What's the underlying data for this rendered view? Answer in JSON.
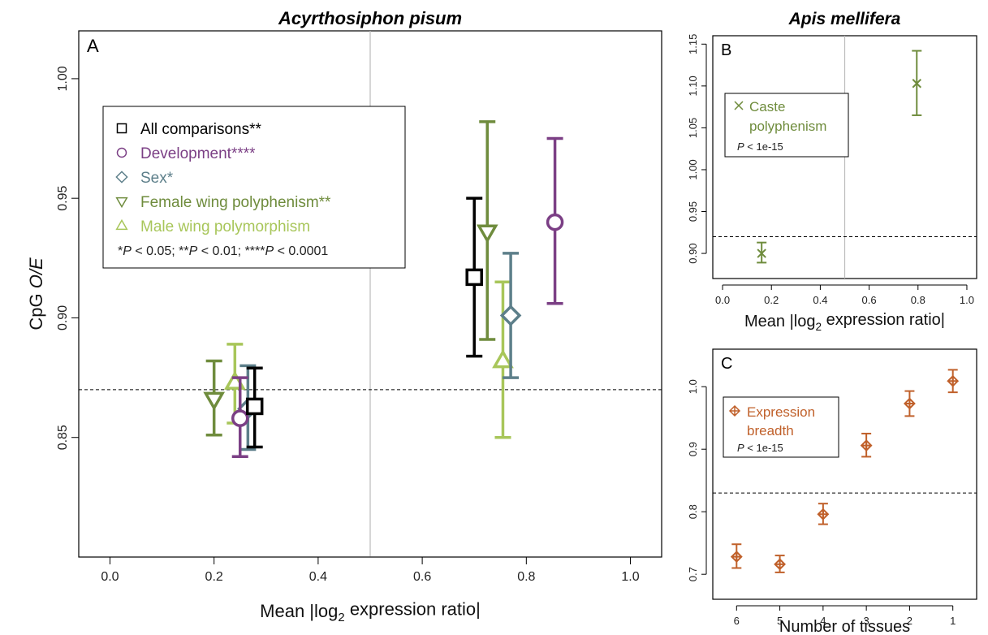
{
  "colors": {
    "all": "#000000",
    "development": "#7b3f85",
    "sex": "#5d7f8a",
    "female_wing": "#6f8c3d",
    "male_wing": "#a8c65a",
    "caste": "#6f8c3d",
    "expression": "#c0602a",
    "refline": "#000000",
    "vline": "#bbbbbb"
  },
  "chart_data": [
    {
      "id": "A",
      "type": "scatter",
      "title": "Acyrthosiphon pisum",
      "panel_label": "A",
      "xlabel": "Mean |log₂ expression ratio|",
      "ylabel": "CpG O/E",
      "xlim": [
        -0.06,
        1.06
      ],
      "ylim": [
        0.8,
        1.02
      ],
      "xticks": [
        0.0,
        0.2,
        0.4,
        0.6,
        0.8,
        1.0
      ],
      "xtick_labels": [
        "0.0",
        "0.2",
        "0.4",
        "0.6",
        "0.8",
        "1.0"
      ],
      "yticks": [
        0.85,
        0.9,
        0.95,
        1.0
      ],
      "ytick_labels": [
        "0.85",
        "0.90",
        "0.95",
        "1.00"
      ],
      "hline": 0.87,
      "vline": 0.5,
      "series": [
        {
          "name": "Female wing polyphenism**",
          "marker": "triangle-down",
          "color_key": "female_wing",
          "points": [
            {
              "x": 0.2,
              "y": 0.866,
              "lo": 0.851,
              "hi": 0.882
            },
            {
              "x": 0.725,
              "y": 0.936,
              "lo": 0.891,
              "hi": 0.982
            }
          ]
        },
        {
          "name": "Male wing polymorphism",
          "marker": "triangle-up",
          "color_key": "male_wing",
          "points": [
            {
              "x": 0.24,
              "y": 0.873,
              "lo": 0.856,
              "hi": 0.889
            },
            {
              "x": 0.755,
              "y": 0.882,
              "lo": 0.85,
              "hi": 0.915
            }
          ]
        },
        {
          "name": "Sex*",
          "marker": "diamond",
          "color_key": "sex",
          "points": [
            {
              "x": 0.265,
              "y": 0.862,
              "lo": 0.845,
              "hi": 0.88
            },
            {
              "x": 0.77,
              "y": 0.901,
              "lo": 0.875,
              "hi": 0.927
            }
          ]
        },
        {
          "name": "Development****",
          "marker": "circle",
          "color_key": "development",
          "points": [
            {
              "x": 0.25,
              "y": 0.858,
              "lo": 0.842,
              "hi": 0.875
            },
            {
              "x": 0.855,
              "y": 0.94,
              "lo": 0.906,
              "hi": 0.975
            }
          ]
        },
        {
          "name": "All comparisons**",
          "marker": "square",
          "color_key": "all",
          "points": [
            {
              "x": 0.278,
              "y": 0.863,
              "lo": 0.846,
              "hi": 0.879
            },
            {
              "x": 0.7,
              "y": 0.917,
              "lo": 0.884,
              "hi": 0.95
            }
          ]
        }
      ],
      "legend": {
        "placement": "top-left",
        "order": [
          "All comparisons**",
          "Development****",
          "Sex*",
          "Female wing polyphenism**",
          "Male wing polymorphism"
        ],
        "footnote": "*P < 0.05; **P < 0.01; ****P < 0.0001"
      }
    },
    {
      "id": "B",
      "type": "scatter",
      "title": "Apis mellifera",
      "panel_label": "B",
      "xlabel": "Mean |log₂ expression ratio|",
      "ylabel": "",
      "xlim": [
        -0.04,
        1.04
      ],
      "ylim": [
        0.87,
        1.16
      ],
      "xticks": [
        0.0,
        0.2,
        0.4,
        0.6,
        0.8,
        1.0
      ],
      "xtick_labels": [
        "0.0",
        "0.2",
        "0.4",
        "0.6",
        "0.8",
        "1.0"
      ],
      "yticks": [
        0.9,
        0.95,
        1.0,
        1.05,
        1.1,
        1.15
      ],
      "ytick_labels": [
        "0.90",
        "0.95",
        "1.00",
        "1.05",
        "1.10",
        "1.15"
      ],
      "hline": 0.92,
      "vline": 0.5,
      "series": [
        {
          "name": "Caste polyphenism",
          "marker": "x",
          "color_key": "caste",
          "points": [
            {
              "x": 0.16,
              "y": 0.9,
              "lo": 0.889,
              "hi": 0.913
            },
            {
              "x": 0.795,
              "y": 1.103,
              "lo": 1.065,
              "hi": 1.142
            }
          ]
        }
      ],
      "legend": {
        "placement": "top-left",
        "label_lines": [
          "Caste",
          "polyphenism"
        ],
        "footnote": "P < 1e-15"
      }
    },
    {
      "id": "C",
      "type": "scatter",
      "title": "",
      "panel_label": "C",
      "xlabel": "Number of tissues",
      "ylabel": "",
      "xlim": [
        0.45,
        6.55
      ],
      "ylim": [
        0.66,
        1.06
      ],
      "xticks": [
        1,
        2,
        3,
        4,
        5,
        6
      ],
      "xtick_labels": [
        "6",
        "5",
        "4",
        "3",
        "2",
        "1"
      ],
      "yticks": [
        0.7,
        0.8,
        0.9,
        1.0
      ],
      "ytick_labels": [
        "0.7",
        "0.8",
        "0.9",
        "1.0"
      ],
      "hline": 0.83,
      "series": [
        {
          "name": "Expression breadth",
          "marker": "diamond-plus",
          "color_key": "expression",
          "points": [
            {
              "x": 1,
              "tissues": 6,
              "y": 0.728,
              "lo": 0.71,
              "hi": 0.748
            },
            {
              "x": 2,
              "tissues": 5,
              "y": 0.716,
              "lo": 0.703,
              "hi": 0.73
            },
            {
              "x": 3,
              "tissues": 4,
              "y": 0.796,
              "lo": 0.78,
              "hi": 0.813
            },
            {
              "x": 4,
              "tissues": 3,
              "y": 0.906,
              "lo": 0.888,
              "hi": 0.925
            },
            {
              "x": 5,
              "tissues": 2,
              "y": 0.973,
              "lo": 0.953,
              "hi": 0.993
            },
            {
              "x": 6,
              "tissues": 1,
              "y": 1.009,
              "lo": 0.991,
              "hi": 1.027
            }
          ]
        }
      ],
      "legend": {
        "placement": "top-left",
        "label_lines": [
          "Expression",
          "breadth"
        ],
        "footnote": "P < 1e-15"
      }
    }
  ]
}
